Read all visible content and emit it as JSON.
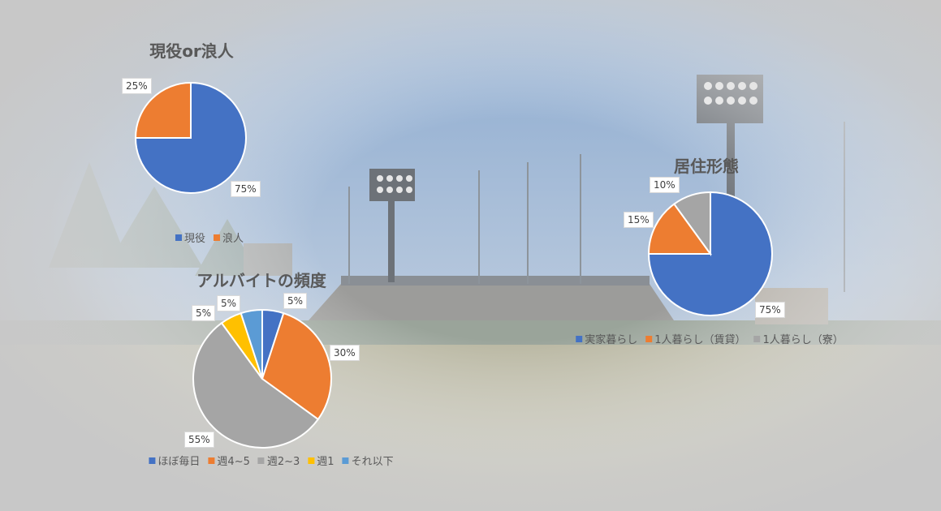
{
  "chart_data": [
    {
      "type": "pie",
      "title": "現役or浪人",
      "categories": [
        "現役",
        "浪人"
      ],
      "values": [
        75,
        25
      ],
      "value_labels": [
        "75%",
        "25%"
      ],
      "colors": [
        "#4472C4",
        "#ED7D31"
      ],
      "legend": "bottom"
    },
    {
      "type": "pie",
      "title": "居住形態",
      "categories": [
        "実家暮らし",
        "1人暮らし（賃貸）",
        "1人暮らし（寮）"
      ],
      "values": [
        75,
        15,
        10
      ],
      "value_labels": [
        "75%",
        "15%",
        "10%"
      ],
      "colors": [
        "#4472C4",
        "#ED7D31",
        "#A5A5A5"
      ],
      "legend": "bottom"
    },
    {
      "type": "pie",
      "title": "アルバイトの頻度",
      "categories": [
        "ほぼ毎日",
        "週4~5",
        "週2~3",
        "週1",
        "それ以下"
      ],
      "values": [
        5,
        30,
        55,
        5,
        5
      ],
      "value_labels": [
        "5%",
        "30%",
        "55%",
        "5%",
        "5%"
      ],
      "colors": [
        "#4472C4",
        "#ED7D31",
        "#A5A5A5",
        "#FFC000",
        "#5B9BD5"
      ],
      "legend": "bottom"
    }
  ]
}
